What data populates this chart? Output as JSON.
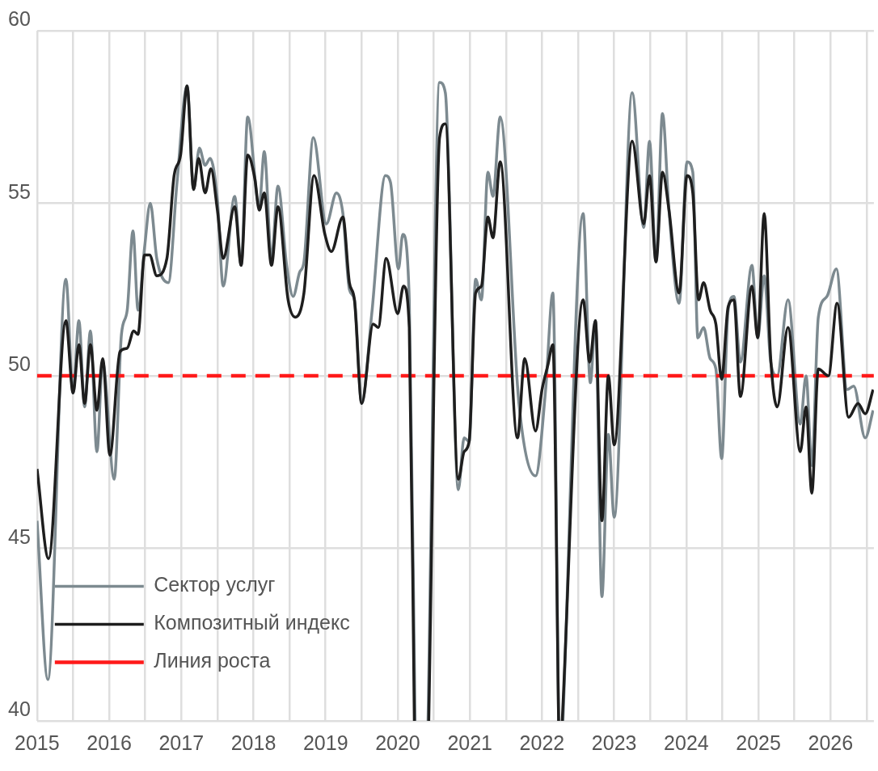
{
  "chart_data": {
    "type": "line",
    "xlim": [
      2015,
      2026.6
    ],
    "ylim": [
      40,
      60
    ],
    "xticks": [
      2015,
      {
        "value": 2015.5,
        "label": null
      },
      2016,
      {
        "value": 2016.5,
        "label": null
      },
      2017,
      {
        "value": 2017.5,
        "label": null
      },
      2018,
      {
        "value": 2018.5,
        "label": null
      },
      2019,
      {
        "value": 2019.5,
        "label": null
      },
      2020,
      {
        "value": 2020.5,
        "label": null
      },
      2021,
      {
        "value": 2021.5,
        "label": null
      },
      2022,
      {
        "value": 2022.5,
        "label": null
      },
      2023,
      {
        "value": 2023.5,
        "label": null
      },
      2024,
      {
        "value": 2024.5,
        "label": null
      },
      2025,
      {
        "value": 2025.5,
        "label": null
      },
      2026,
      {
        "value": 2026.5,
        "label": null
      }
    ],
    "yticks": [
      40,
      45,
      50,
      55,
      60
    ],
    "grid": true,
    "legend": "bottom left",
    "marker": "none",
    "line_style": "solid",
    "series": [
      {
        "name": "Сектор услуг",
        "color": "#7d8a90",
        "x": [
          2015.0,
          2015.15,
          2015.4,
          2015.5,
          2015.58,
          2015.66,
          2015.74,
          2015.83,
          2015.91,
          2016.07,
          2016.17,
          2016.25,
          2016.33,
          2016.4,
          2016.49,
          2016.57,
          2016.66,
          2016.82,
          2016.94,
          2017.08,
          2017.17,
          2017.25,
          2017.33,
          2017.4,
          2017.5,
          2017.58,
          2017.74,
          2017.83,
          2017.92,
          2018.08,
          2018.15,
          2018.25,
          2018.34,
          2018.46,
          2018.55,
          2018.64,
          2018.7,
          2018.83,
          2019.01,
          2019.15,
          2019.24,
          2019.33,
          2019.4,
          2019.5,
          2019.64,
          2019.83,
          2019.9,
          2020.01,
          2020.07,
          2020.16,
          2020.24,
          2020.33,
          2020.42,
          2020.58,
          2020.66,
          2020.84,
          2020.92,
          2020.99,
          2021.08,
          2021.16,
          2021.25,
          2021.32,
          2021.42,
          2021.68,
          2021.91,
          2022.05,
          2022.15,
          2022.23,
          2022.26,
          2022.29,
          2022.57,
          2022.67,
          2022.74,
          2022.83,
          2022.92,
          2023.0,
          2023.25,
          2023.41,
          2023.49,
          2023.58,
          2023.67,
          2023.76,
          2023.9,
          2024.01,
          2024.09,
          2024.16,
          2024.24,
          2024.33,
          2024.41,
          2024.49,
          2024.58,
          2024.66,
          2024.75,
          2024.91,
          2024.99,
          2025.08,
          2025.17,
          2025.26,
          2025.41,
          2025.58,
          2025.66,
          2025.74,
          2025.83,
          2025.95,
          2026.08,
          2026.23,
          2026.32,
          2026.48,
          2026.59
        ],
        "values": [
          45.8,
          41.2,
          52.8,
          49.5,
          51.6,
          49.1,
          51.3,
          47.8,
          50.4,
          47.0,
          51.2,
          51.9,
          54.2,
          51.9,
          53.7,
          55.0,
          53.4,
          52.7,
          55.6,
          58.4,
          55.4,
          56.6,
          56.1,
          56.3,
          55.1,
          52.6,
          55.2,
          53.2,
          57.5,
          54.9,
          56.5,
          53.4,
          55.5,
          53.2,
          52.3,
          53.0,
          53.3,
          56.9,
          54.4,
          55.3,
          54.7,
          52.5,
          52.2,
          49.2,
          51.8,
          55.8,
          55.6,
          53.1,
          54.1,
          52.2,
          40,
          null,
          40,
          58.5,
          58.2,
          46.7,
          48.2,
          48.1,
          52.8,
          52.2,
          55.9,
          55.2,
          57.5,
          49.2,
          47.1,
          49.6,
          52.4,
          40,
          null,
          40,
          54.7,
          49.8,
          51.6,
          43.6,
          48.3,
          45.9,
          58.2,
          54.3,
          56.8,
          53.3,
          57.6,
          54.8,
          52.1,
          56.2,
          55.9,
          51.1,
          51.4,
          50.5,
          50.2,
          47.6,
          51.9,
          52.3,
          50.4,
          53.2,
          51.1,
          52.9,
          50.4,
          50.0,
          52.2,
          48.6,
          50.0,
          47.4,
          51.7,
          52.3,
          53.1,
          49.6,
          49.7,
          48.2,
          49.0
        ]
      },
      {
        "name": "Композитный индекс",
        "color": "#1e1e1e",
        "x": [
          2015.0,
          2015.16,
          2015.4,
          2015.5,
          2015.58,
          2015.66,
          2015.74,
          2015.83,
          2015.91,
          2016.01,
          2016.15,
          2016.25,
          2016.34,
          2016.4,
          2016.49,
          2016.56,
          2016.66,
          2016.8,
          2016.9,
          2016.99,
          2017.08,
          2017.17,
          2017.24,
          2017.33,
          2017.41,
          2017.5,
          2017.58,
          2017.74,
          2017.83,
          2017.92,
          2018.02,
          2018.08,
          2018.15,
          2018.25,
          2018.34,
          2018.48,
          2018.58,
          2018.7,
          2018.84,
          2018.99,
          2019.08,
          2019.24,
          2019.33,
          2019.4,
          2019.5,
          2019.66,
          2019.73,
          2019.84,
          2020.0,
          2020.08,
          2020.16,
          2020.23,
          2020.33,
          2020.43,
          2020.58,
          2020.66,
          2020.84,
          2020.92,
          2020.99,
          2021.08,
          2021.16,
          2021.25,
          2021.32,
          2021.42,
          2021.66,
          2021.76,
          2021.91,
          2022.0,
          2022.08,
          2022.15,
          2022.23,
          2022.26,
          2022.28,
          2022.57,
          2022.66,
          2022.74,
          2022.83,
          2022.92,
          2023.0,
          2023.25,
          2023.41,
          2023.49,
          2023.58,
          2023.67,
          2023.76,
          2023.9,
          2024.01,
          2024.09,
          2024.17,
          2024.24,
          2024.33,
          2024.41,
          2024.49,
          2024.58,
          2024.66,
          2024.75,
          2024.91,
          2024.99,
          2025.08,
          2025.17,
          2025.26,
          2025.41,
          2025.58,
          2025.66,
          2025.74,
          2025.83,
          2025.97,
          2026.09,
          2026.25,
          2026.38,
          2026.48,
          2026.59
        ],
        "values": [
          47.3,
          44.7,
          51.6,
          49.5,
          50.9,
          49.2,
          50.9,
          49.0,
          50.5,
          47.7,
          50.7,
          50.8,
          51.3,
          51.2,
          53.5,
          53.5,
          52.9,
          53.4,
          55.8,
          56.4,
          58.4,
          55.4,
          56.3,
          55.3,
          56.0,
          54.8,
          53.4,
          54.9,
          53.2,
          56.4,
          55.7,
          54.8,
          55.3,
          53.2,
          54.9,
          52.2,
          51.7,
          52.4,
          55.8,
          54.1,
          53.6,
          54.6,
          52.7,
          52.2,
          49.2,
          51.5,
          51.4,
          53.4,
          51.8,
          52.6,
          51.4,
          40,
          null,
          40,
          56.9,
          57.3,
          47.0,
          47.8,
          48.1,
          52.4,
          52.6,
          54.6,
          54.0,
          56.2,
          48.2,
          50.5,
          48.4,
          49.6,
          50.3,
          50.9,
          40,
          null,
          40,
          52.2,
          50.4,
          51.6,
          45.8,
          50.0,
          48.0,
          56.8,
          54.4,
          55.8,
          53.3,
          55.9,
          54.8,
          52.4,
          55.8,
          55.3,
          52.2,
          52.7,
          51.9,
          51.5,
          49.9,
          52.0,
          52.2,
          49.4,
          52.6,
          51.1,
          54.7,
          50.5,
          49.1,
          51.4,
          47.8,
          49.1,
          46.6,
          50.2,
          50.0,
          52.1,
          48.8,
          49.2,
          48.9,
          49.6
        ]
      }
    ],
    "ref_lines": [
      {
        "axis": "y",
        "value": 50,
        "label": "Линия роста",
        "color": "#ff1a1a",
        "line_style": "dashed"
      }
    ]
  }
}
